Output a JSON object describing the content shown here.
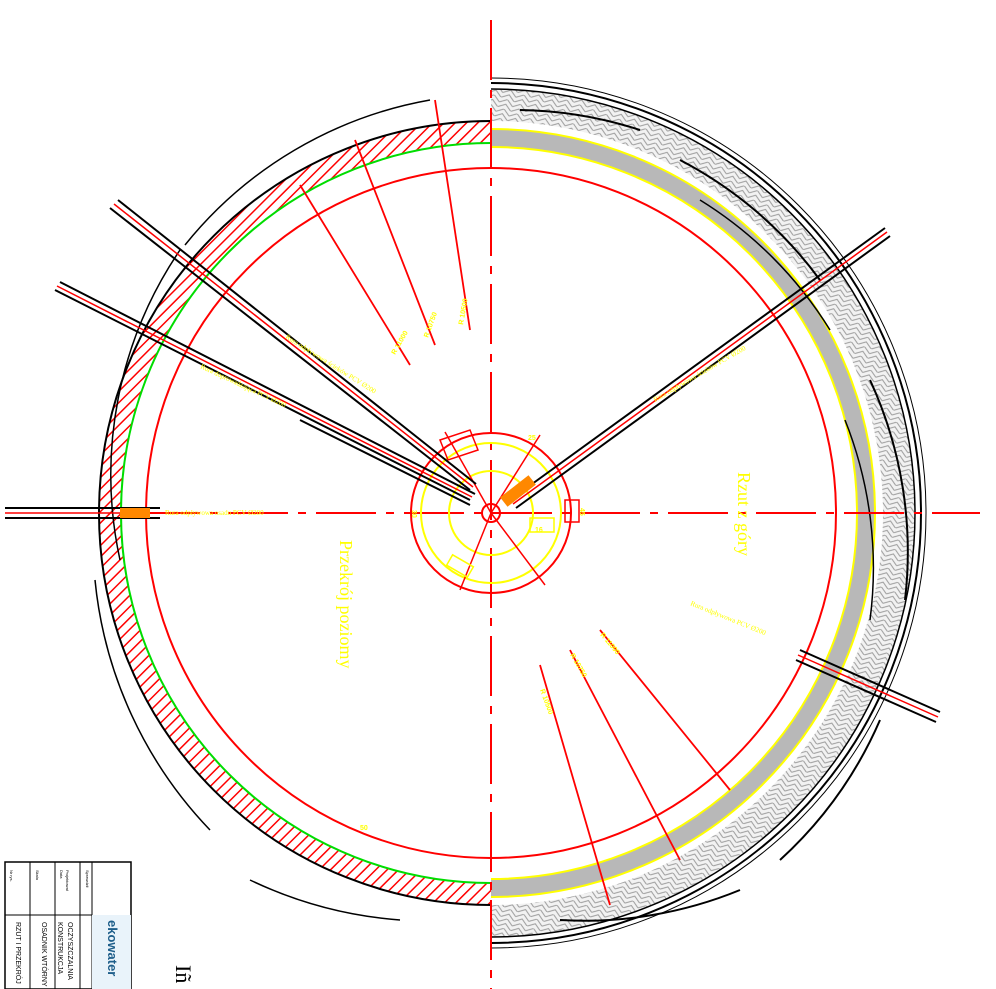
{
  "drawing": {
    "view_left_label": "Przekrój poziomy",
    "view_right_label": "Rzut z góry",
    "pipe_labels": {
      "inlet_left": "Rura odpływowa osadu PCV Ø200",
      "pipe_nw_1": "Rura odpływowa ścieków PCV Ø200",
      "pipe_nw_2": "Rura doprowadzająca PCV Ø200",
      "pipe_ne": "Rura odpływowa ścieków PCV Ø200",
      "pipe_se": "Rura odpływowa PCV Ø200"
    },
    "dimension_labels": {
      "r1": "R 11000",
      "r2": "R 10750",
      "r3": "R 10500",
      "r4": "R 10500",
      "r5": "R 10750",
      "r6": "R 11000",
      "d_30": "30",
      "d_45": "45",
      "d_16": "16",
      "d_25": "25",
      "d_50": "50"
    }
  },
  "title_block": {
    "company": "ekowater",
    "line1": "OCZYSZCZALNIA",
    "line2": "KONSTRUKCJA",
    "line3": "OSADNIK WTÓRNY",
    "line4": "RZUT I PRZEKRÓJ",
    "field_labels": [
      "Nr rys.",
      "Skala",
      "Data",
      "Projektował",
      "Sprawdził"
    ],
    "signature": "Iñ"
  },
  "colors": {
    "red": "#ff0000",
    "yellow": "#ffff00",
    "green": "#00dd00",
    "black": "#000000",
    "gray": "#b8b8b8",
    "orange": "#ff8800"
  }
}
